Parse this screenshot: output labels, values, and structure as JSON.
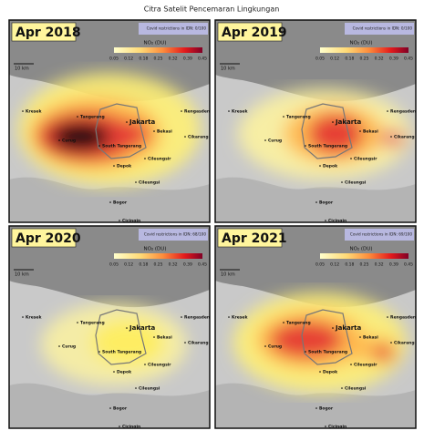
{
  "title": "Citra Satelit Pencemaran Lingkungan",
  "legend": {
    "label": "NO₂ (DU)",
    "ticks": [
      0.05,
      0.12,
      0.18,
      0.25,
      0.32,
      0.39,
      0.45
    ]
  },
  "scale": "10 km",
  "places": [
    "Kresek",
    "Tangerang",
    "Jakarta",
    "Bekasi",
    "Rengasdengklok",
    "Cikarang",
    "Curug",
    "South Tangerang",
    "Depok",
    "Cileungsir",
    "Cileungsi",
    "Bogor",
    "Cicingin"
  ],
  "panels": [
    {
      "year": "Apr 2018",
      "restriction": "Covid restrictions in IDN: 0/100"
    },
    {
      "year": "Apr 2019",
      "restriction": "Covid restrictions in IDN: 0/100"
    },
    {
      "year": "Apr 2020",
      "restriction": "Covid restrictions in IDN: 68/100"
    },
    {
      "year": "Apr 2021",
      "restriction": "Covid restrictions in IDN: 69/100"
    }
  ]
}
